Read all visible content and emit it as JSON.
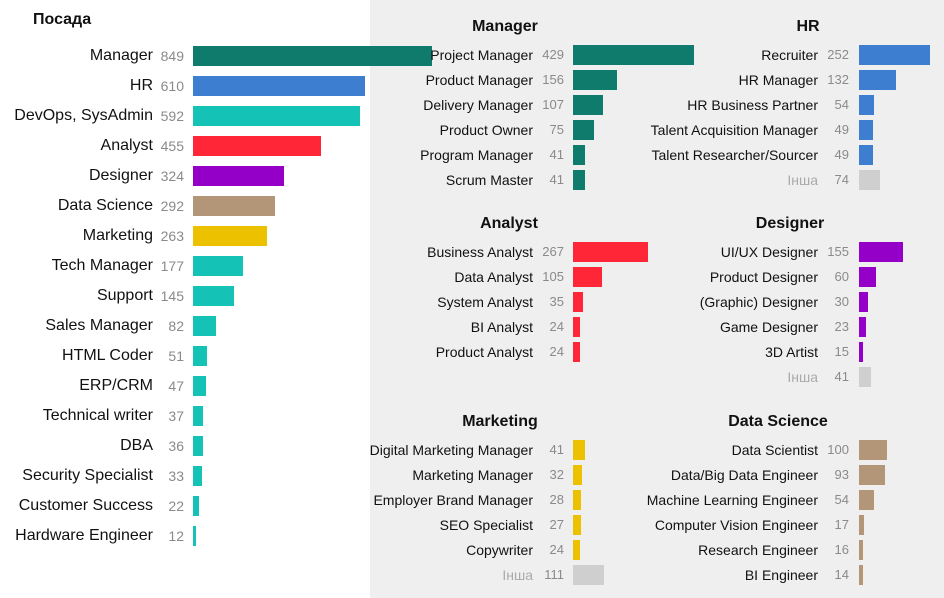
{
  "chart_data": [
    {
      "type": "bar",
      "orientation": "horizontal",
      "title": "Посада",
      "color": "#ffffff",
      "bars": [
        {
          "label": "Manager",
          "value": 849,
          "color": "#0f7b6c"
        },
        {
          "label": "HR",
          "value": 610,
          "color": "#3d7ed1"
        },
        {
          "label": "DevOps, SysAdmin",
          "value": 592,
          "color": "#14c2b6"
        },
        {
          "label": "Analyst",
          "value": 455,
          "color": "#ff2638"
        },
        {
          "label": "Designer",
          "value": 324,
          "color": "#9500c8"
        },
        {
          "label": "Data Science",
          "value": 292,
          "color": "#b39678"
        },
        {
          "label": "Marketing",
          "value": 263,
          "color": "#ecc100"
        },
        {
          "label": "Tech Manager",
          "value": 177,
          "color": "#14c2b6"
        },
        {
          "label": "Support",
          "value": 145,
          "color": "#14c2b6"
        },
        {
          "label": "Sales Manager",
          "value": 82,
          "color": "#14c2b6"
        },
        {
          "label": "HTML Coder",
          "value": 51,
          "color": "#14c2b6"
        },
        {
          "label": "ERP/CRM",
          "value": 47,
          "color": "#14c2b6"
        },
        {
          "label": "Technical writer",
          "value": 37,
          "color": "#14c2b6"
        },
        {
          "label": "DBA",
          "value": 36,
          "color": "#14c2b6"
        },
        {
          "label": "Security Specialist",
          "value": 33,
          "color": "#14c2b6"
        },
        {
          "label": "Customer Success",
          "value": 22,
          "color": "#14c2b6"
        },
        {
          "label": "Hardware Engineer",
          "value": 12,
          "color": "#14c2b6"
        }
      ]
    },
    {
      "type": "bar",
      "orientation": "horizontal",
      "title": "Manager",
      "bars": [
        {
          "label": "Project Manager",
          "value": 429,
          "color": "#0f7b6c"
        },
        {
          "label": "Product Manager",
          "value": 156,
          "color": "#0f7b6c"
        },
        {
          "label": "Delivery Manager",
          "value": 107,
          "color": "#0f7b6c"
        },
        {
          "label": "Product Owner",
          "value": 75,
          "color": "#0f7b6c"
        },
        {
          "label": "Program Manager",
          "value": 41,
          "color": "#0f7b6c"
        },
        {
          "label": "Scrum Master",
          "value": 41,
          "color": "#0f7b6c"
        }
      ]
    },
    {
      "type": "bar",
      "orientation": "horizontal",
      "title": "HR",
      "bars": [
        {
          "label": "Recruiter",
          "value": 252,
          "color": "#3d7ed1"
        },
        {
          "label": "HR Manager",
          "value": 132,
          "color": "#3d7ed1"
        },
        {
          "label": "HR Business Partner",
          "value": 54,
          "color": "#3d7ed1"
        },
        {
          "label": "Talent Acquisition Manager",
          "value": 49,
          "color": "#3d7ed1"
        },
        {
          "label": "Talent Researcher/Sourcer",
          "value": 49,
          "color": "#3d7ed1"
        },
        {
          "label": "Інша",
          "value": 74,
          "color": "#cfcfcf",
          "other": true
        }
      ]
    },
    {
      "type": "bar",
      "orientation": "horizontal",
      "title": "Analyst",
      "bars": [
        {
          "label": "Business Analyst",
          "value": 267,
          "color": "#ff2638"
        },
        {
          "label": "Data Analyst",
          "value": 105,
          "color": "#ff2638"
        },
        {
          "label": "System Analyst",
          "value": 35,
          "color": "#ff2638"
        },
        {
          "label": "BI Analyst",
          "value": 24,
          "color": "#ff2638"
        },
        {
          "label": "Product Analyst",
          "value": 24,
          "color": "#ff2638"
        }
      ]
    },
    {
      "type": "bar",
      "orientation": "horizontal",
      "title": "Designer",
      "bars": [
        {
          "label": "UI/UX Designer",
          "value": 155,
          "color": "#9500c8"
        },
        {
          "label": "Product Designer",
          "value": 60,
          "color": "#9500c8"
        },
        {
          "label": "(Graphic) Designer",
          "value": 30,
          "color": "#9500c8"
        },
        {
          "label": "Game Designer",
          "value": 23,
          "color": "#9500c8"
        },
        {
          "label": "3D Artist",
          "value": 15,
          "color": "#9500c8"
        },
        {
          "label": "Інша",
          "value": 41,
          "color": "#cfcfcf",
          "other": true
        }
      ]
    },
    {
      "type": "bar",
      "orientation": "horizontal",
      "title": "Marketing",
      "bars": [
        {
          "label": "Digital Marketing Manager",
          "value": 41,
          "color": "#ecc100"
        },
        {
          "label": "Marketing Manager",
          "value": 32,
          "color": "#ecc100"
        },
        {
          "label": "Employer Brand Manager",
          "value": 28,
          "color": "#ecc100"
        },
        {
          "label": "SEO Specialist",
          "value": 27,
          "color": "#ecc100"
        },
        {
          "label": "Copywriter",
          "value": 24,
          "color": "#ecc100"
        },
        {
          "label": "Інша",
          "value": 111,
          "color": "#cfcfcf",
          "other": true
        }
      ]
    },
    {
      "type": "bar",
      "orientation": "horizontal",
      "title": "Data Science",
      "bars": [
        {
          "label": "Data Scientist",
          "value": 100,
          "color": "#b39678"
        },
        {
          "label": "Data/Big Data Engineer",
          "value": 93,
          "color": "#b39678"
        },
        {
          "label": "Machine Learning Engineer",
          "value": 54,
          "color": "#b39678"
        },
        {
          "label": "Computer Vision Engineer",
          "value": 17,
          "color": "#b39678"
        },
        {
          "label": "Research Engineer",
          "value": 16,
          "color": "#b39678"
        },
        {
          "label": "BI Engineer",
          "value": 14,
          "color": "#b39678"
        }
      ]
    }
  ]
}
